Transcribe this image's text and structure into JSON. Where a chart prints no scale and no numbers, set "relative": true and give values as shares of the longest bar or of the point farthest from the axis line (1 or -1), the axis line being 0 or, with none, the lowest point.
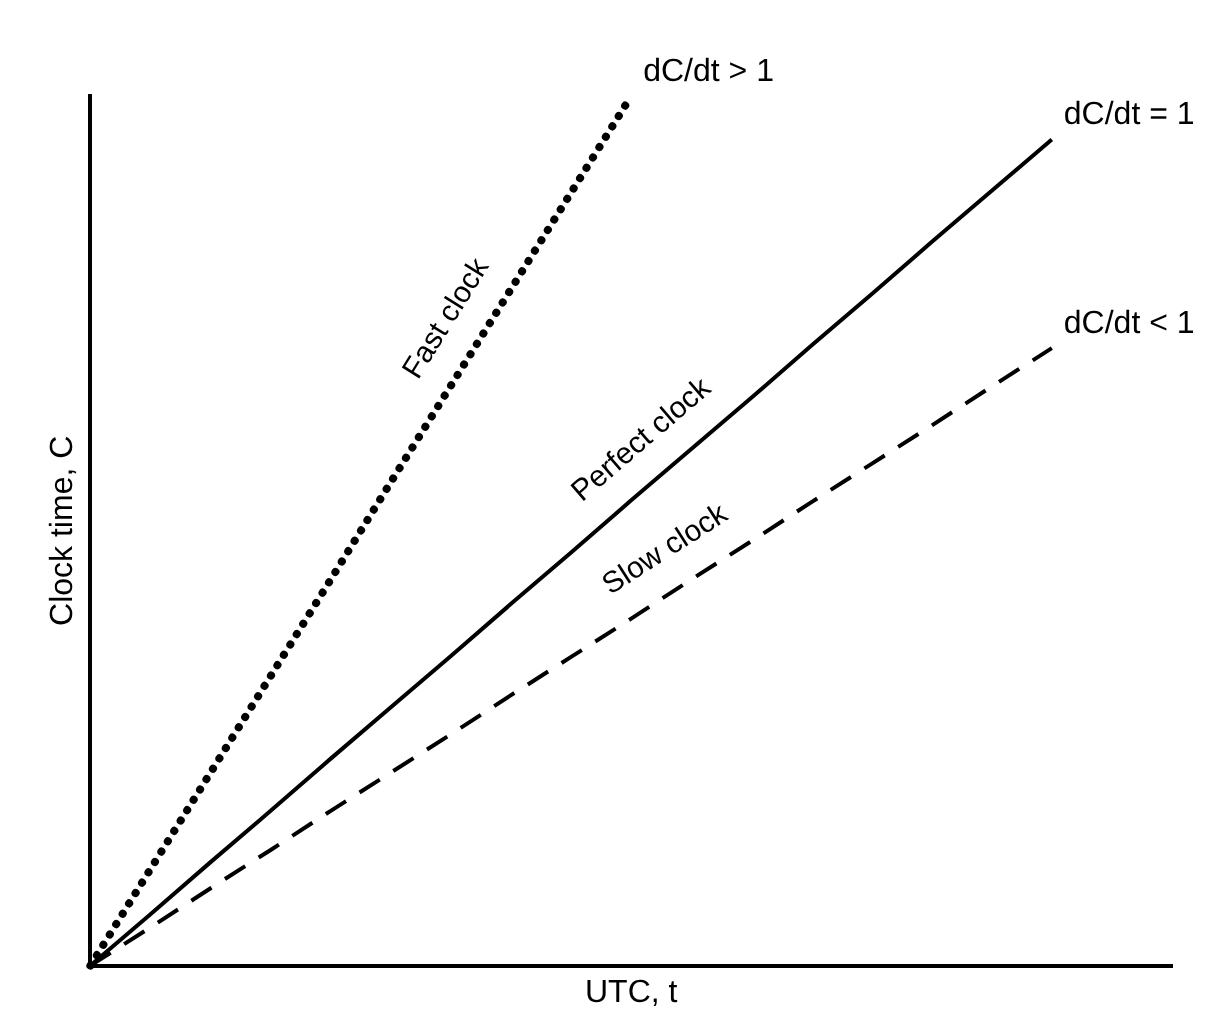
{
  "chart_data": {
    "type": "line",
    "relative": true,
    "xlabel": "UTC, t",
    "ylabel": "Clock time, C",
    "tick_labels": false,
    "grid": false,
    "legend": false,
    "marker": "none",
    "categories": [
      null,
      null,
      null,
      null,
      null,
      null,
      null,
      null,
      null,
      null,
      null,
      null,
      null,
      null,
      null,
      null,
      null,
      null,
      null
    ],
    "series": [
      {
        "name": "Fast clock",
        "color": "#000000",
        "line_style": "dotted",
        "values": [
          0,
          0.111,
          0.222,
          0.333,
          0.444,
          0.556,
          0.667,
          0.778,
          0.889,
          1,
          null,
          null,
          null,
          null,
          null,
          null,
          null,
          null,
          null
        ]
      },
      {
        "name": "Perfect clock",
        "color": "#000000",
        "line_style": "solid",
        "values": [
          0,
          0.059,
          0.119,
          0.178,
          0.238,
          0.297,
          0.356,
          0.416,
          0.475,
          0.535,
          0.594,
          0.653,
          0.713,
          0.772,
          0.832,
          0.891,
          0.95,
          null,
          null
        ]
      },
      {
        "name": "Slow clock",
        "color": "#000000",
        "line_style": "dashed",
        "values": [
          0,
          0.044,
          0.089,
          0.133,
          0.178,
          0.222,
          0.266,
          0.311,
          0.355,
          0.399,
          0.444,
          0.488,
          0.533,
          0.577,
          0.621,
          0.666,
          0.71,
          null,
          null
        ]
      }
    ],
    "annotations": [
      "dC/dt > 1",
      "dC/dt = 1",
      "dC/dt < 1"
    ]
  }
}
